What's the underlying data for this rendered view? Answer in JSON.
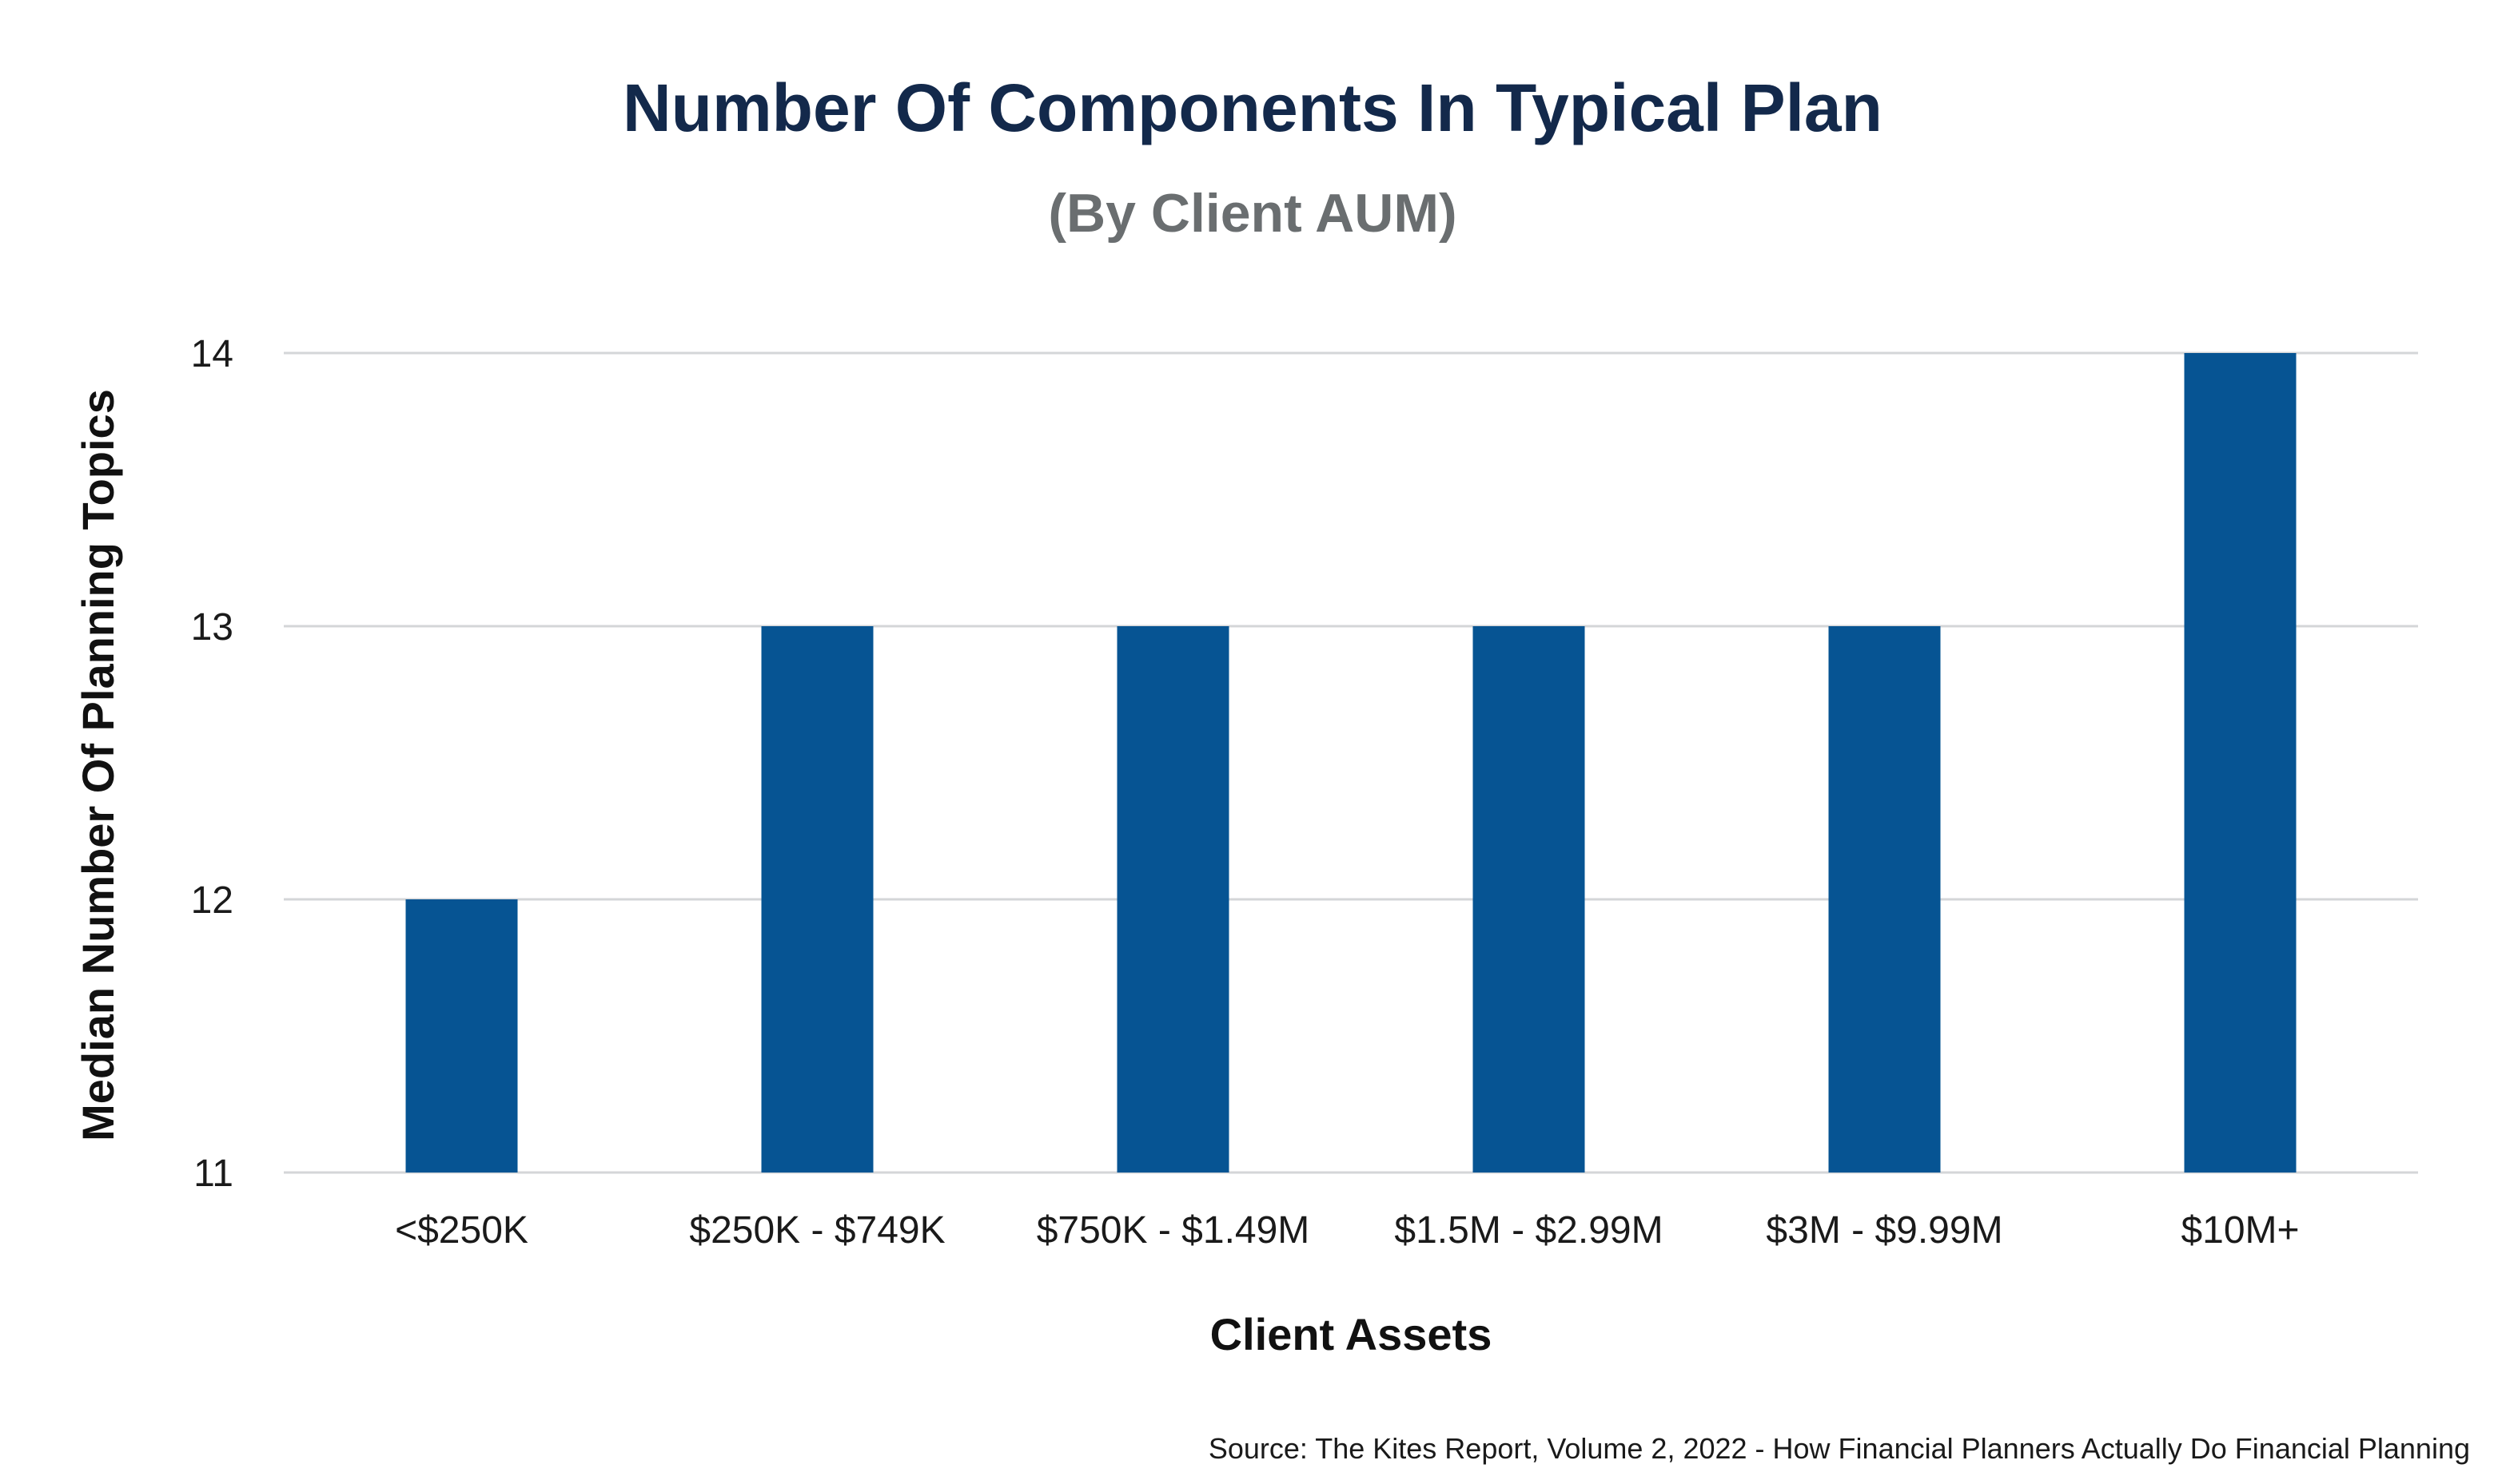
{
  "chart_data": {
    "type": "bar",
    "title": "Number Of Components In Typical Plan",
    "subtitle": "(By Client AUM)",
    "xlabel": "Client Assets",
    "ylabel": "Median Number Of Planning Topics",
    "categories": [
      "<$250K",
      "$250K - $749K",
      "$750K - $1.49M",
      "$1.5M - $2.99M",
      "$3M - $9.99M",
      "$10M+"
    ],
    "values": [
      12,
      13,
      13,
      13,
      13,
      14
    ],
    "ylim": [
      11,
      14
    ],
    "yticks": [
      "11",
      "12",
      "13",
      "14"
    ],
    "grid": "horizontal",
    "legend": "none",
    "source": "Source: The Kites Report, Volume 2, 2022 - How Financial Planners Actually Do Financial Planning"
  },
  "colors": {
    "bar": "#065493",
    "title": "#13294b",
    "subtitle": "#6a6e70",
    "gridline": "#d4d6d8"
  }
}
